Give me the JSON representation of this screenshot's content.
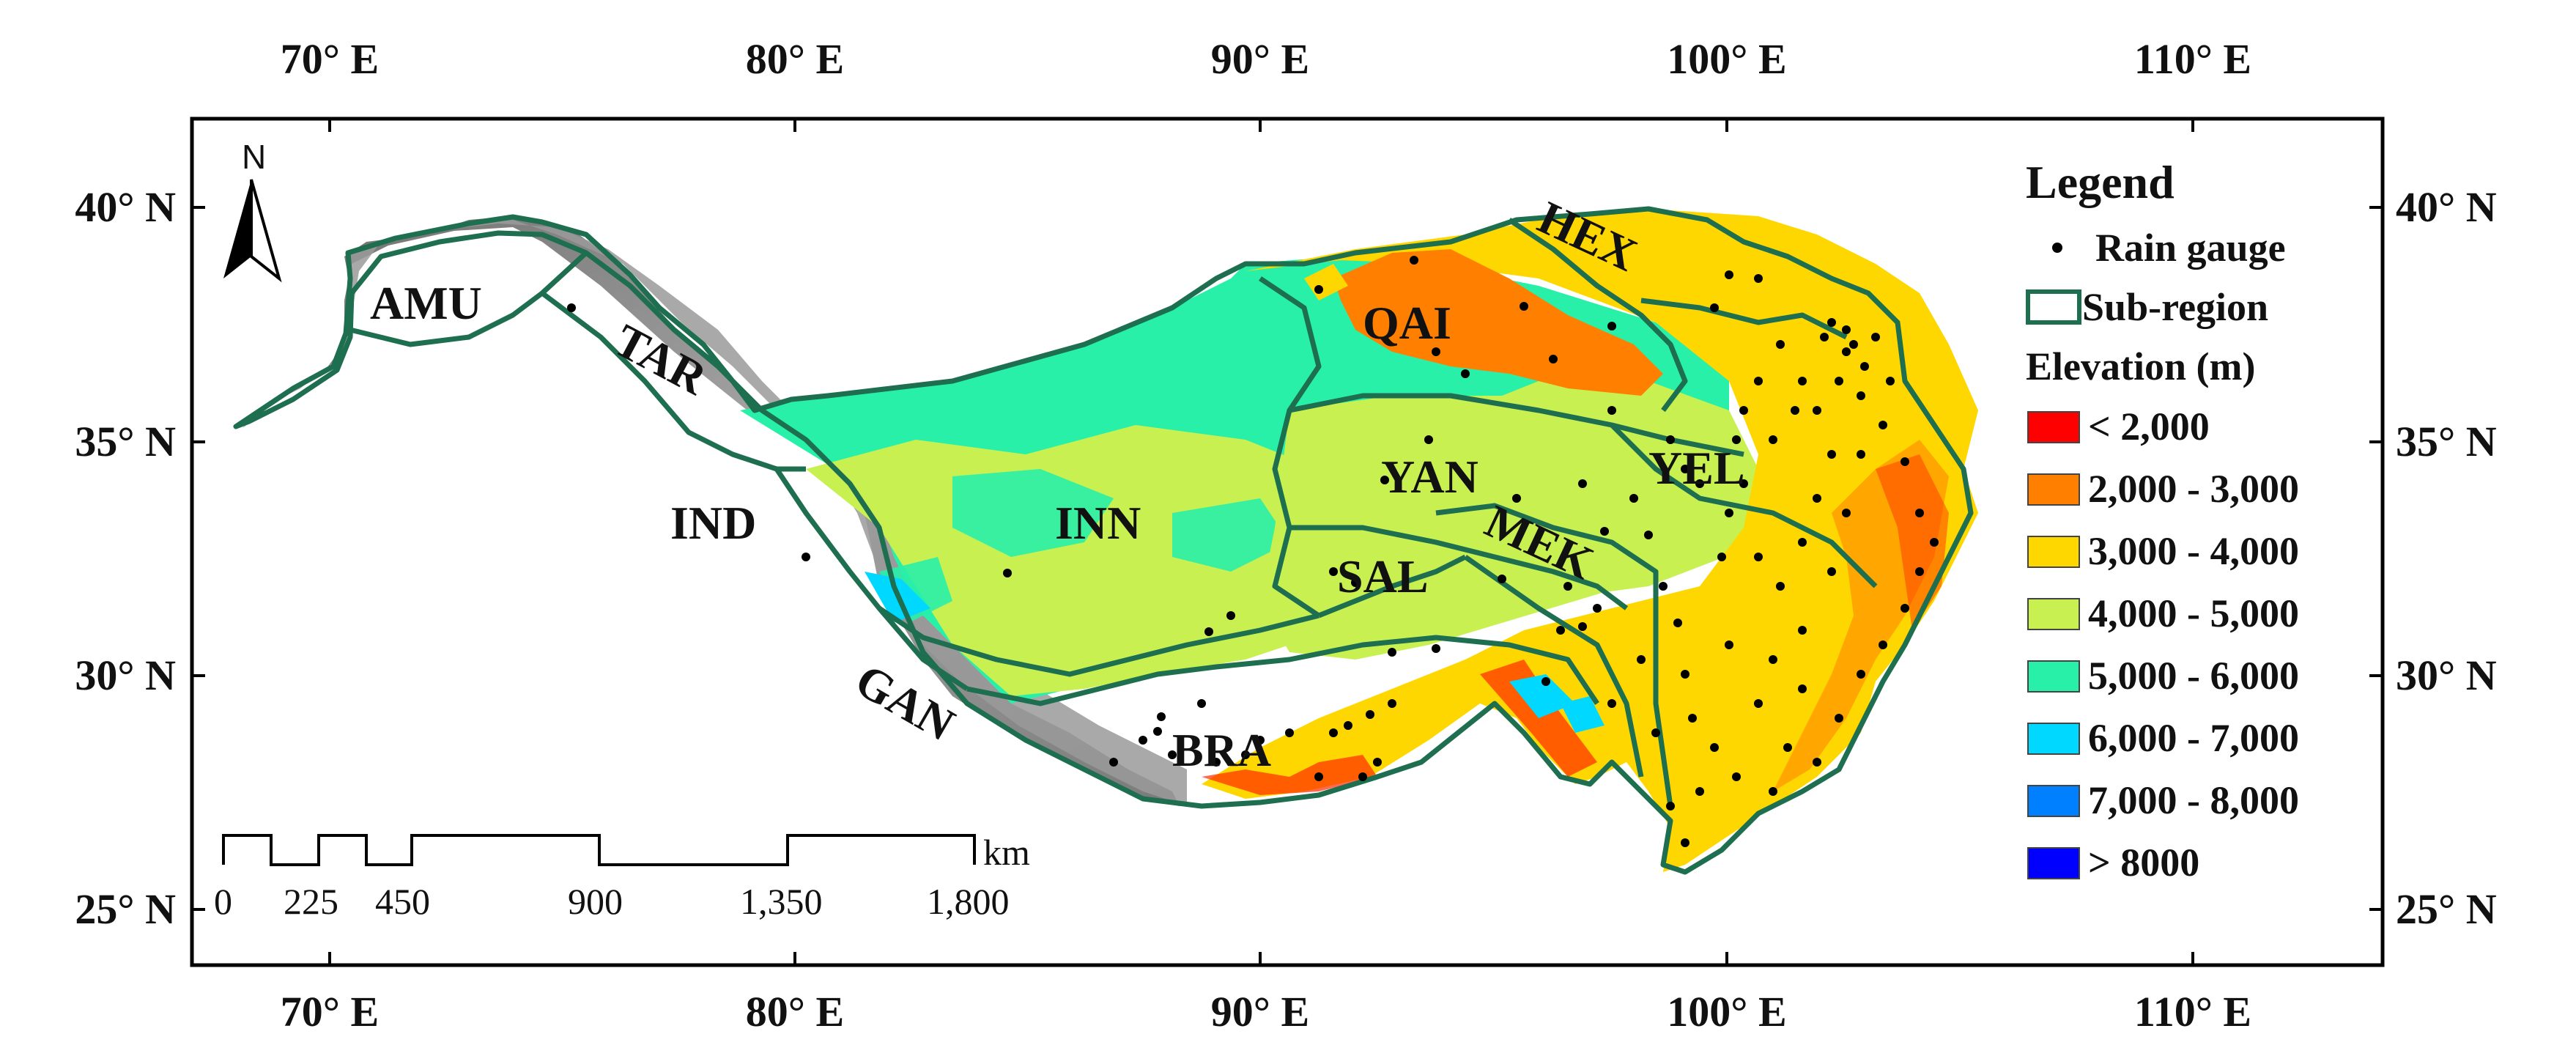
{
  "map": {
    "lon_ticks": [
      "70° E",
      "80° E",
      "90° E",
      "100° E",
      "110° E"
    ],
    "lat_ticks": [
      "40° N",
      "35° N",
      "30° N",
      "25° N"
    ],
    "north_arrow_label": "N",
    "regions": [
      {
        "code": "AMU"
      },
      {
        "code": "TAR"
      },
      {
        "code": "IND"
      },
      {
        "code": "GAN"
      },
      {
        "code": "INN"
      },
      {
        "code": "BRA"
      },
      {
        "code": "QAI"
      },
      {
        "code": "HEX"
      },
      {
        "code": "YAN"
      },
      {
        "code": "SAL"
      },
      {
        "code": "MEK"
      },
      {
        "code": "YEL"
      }
    ]
  },
  "scale_bar": {
    "unit": "km",
    "labels": [
      "0",
      "225",
      "450",
      "900",
      "1,350",
      "1,800"
    ]
  },
  "legend": {
    "title": "Legend",
    "rain_gauge": "Rain gauge",
    "sub_region": "Sub-region",
    "elevation_title": "Elevation (m)",
    "classes": [
      {
        "label": "< 2,000",
        "color": "#ff0000"
      },
      {
        "label": "2,000 - 3,000",
        "color": "#ff8000"
      },
      {
        "label": "3,000 - 4,000",
        "color": "#ffd700"
      },
      {
        "label": "4,000 - 5,000",
        "color": "#c8f050"
      },
      {
        "label": "5,000 - 6,000",
        "color": "#28f0a8"
      },
      {
        "label": "6,000 - 7,000",
        "color": "#00d8ff"
      },
      {
        "label": "7,000 - 8,000",
        "color": "#0080ff"
      },
      {
        "label": "> 8000",
        "color": "#0000ff"
      }
    ]
  },
  "colors": {
    "subregion_border": "#1e6e50",
    "hillshade": "#8a8a8a",
    "gauge": "#000000"
  }
}
